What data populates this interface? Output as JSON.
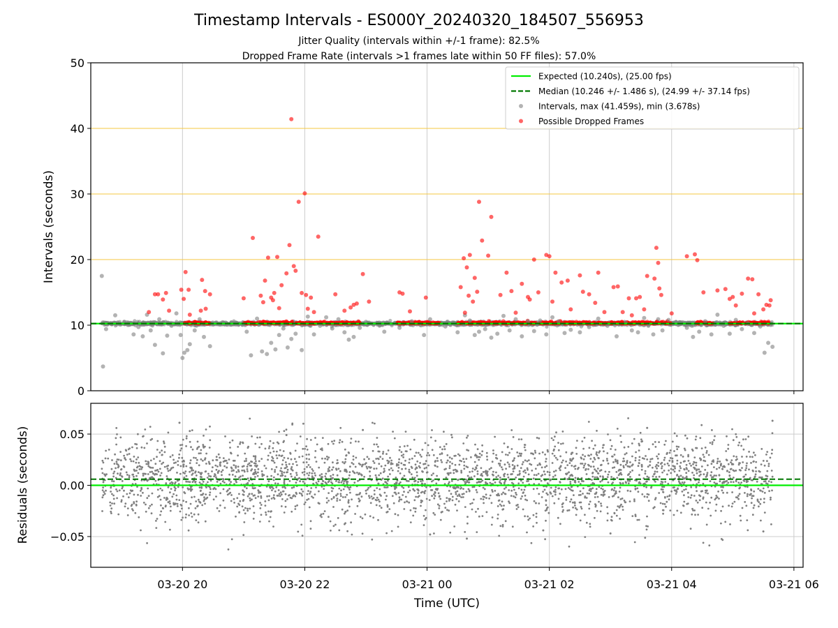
{
  "figure": {
    "title": "Timestamp Intervals - ES000Y_20240320_184507_556953",
    "subtitle_1": "Jitter Quality (intervals within +/-1 frame): 82.5%",
    "subtitle_2": "Dropped Frame Rate (intervals >1 frames late within 50 FF files): 57.0%"
  },
  "colors": {
    "expected": "#00ee00",
    "median": "#007700",
    "intervals": "#808080",
    "dropped": "#ff0000",
    "threshold": "#f5c842",
    "grid": "#cccccc"
  },
  "chart_data": [
    {
      "type": "scatter",
      "panel": "intervals",
      "xlabel": "",
      "ylabel": "Intervals (seconds)",
      "x_unit": "hours since 2024-03-20 00:00 UTC",
      "xlim": [
        18.5,
        30.15
      ],
      "ylim": [
        0,
        50
      ],
      "yticks": [
        0,
        10,
        20,
        30,
        40,
        50
      ],
      "ytick_labels": [
        "0",
        "10",
        "20",
        "30",
        "40",
        "50"
      ],
      "xticks": [
        20,
        22,
        24,
        26,
        28,
        30
      ],
      "threshold_lines": [
        20,
        30,
        40
      ],
      "expected_value": 10.24,
      "median_value": 10.246,
      "grid": true,
      "legend_position": "top-right",
      "legend": [
        {
          "label": "Expected (10.240s), (25.00 fps)",
          "style": "solid-line",
          "color": "#00ee00"
        },
        {
          "label": "Median (10.246 +/- 1.486 s), (24.99 +/- 37.14 fps)",
          "style": "dashed-line",
          "color": "#007700"
        },
        {
          "label": "Intervals, max (41.459s), min (3.678s)",
          "style": "dot",
          "color": "#808080"
        },
        {
          "label": "Possible Dropped Frames",
          "style": "dot",
          "color": "#ff0000"
        }
      ],
      "series": [
        {
          "name": "Intervals, max (41.459s), min (3.678s)",
          "x": [
            18.68,
            18.7,
            18.75,
            18.9,
            19.05,
            19.2,
            19.28,
            19.35,
            19.42,
            19.48,
            19.55,
            19.62,
            19.68,
            19.75,
            19.82,
            19.9,
            19.97,
            20.0,
            20.03,
            20.08,
            20.12,
            20.2,
            20.28,
            20.35,
            20.45,
            21.05,
            21.12,
            21.22,
            21.3,
            21.38,
            21.45,
            21.52,
            21.58,
            21.65,
            21.72,
            21.78,
            21.85,
            21.95,
            22.05,
            22.15,
            22.25,
            22.35,
            22.45,
            22.55,
            22.65,
            22.72,
            22.8,
            22.9,
            23.0,
            23.3,
            23.55,
            23.75,
            23.95,
            24.05,
            24.3,
            24.5,
            24.62,
            24.7,
            24.78,
            24.85,
            24.95,
            25.05,
            25.15,
            25.25,
            25.35,
            25.45,
            25.55,
            25.65,
            25.75,
            25.85,
            25.95,
            26.05,
            26.15,
            26.25,
            26.35,
            26.5,
            26.65,
            26.8,
            26.95,
            27.1,
            27.25,
            27.35,
            27.45,
            27.55,
            27.62,
            27.7,
            27.78,
            27.85,
            27.95,
            28.15,
            28.25,
            28.35,
            28.45,
            28.55,
            28.65,
            28.75,
            28.85,
            28.95,
            29.05,
            29.15,
            29.25,
            29.35,
            29.45,
            29.52,
            29.58,
            29.65
          ],
          "y": [
            17.5,
            3.7,
            9.4,
            11.5,
            10.5,
            8.6,
            9.7,
            8.3,
            11.6,
            9.2,
            7.0,
            10.9,
            5.7,
            8.4,
            9.9,
            11.8,
            8.5,
            5.0,
            5.8,
            6.2,
            7.1,
            9.2,
            10.9,
            8.2,
            6.8,
            9.0,
            5.4,
            11.0,
            6.0,
            5.6,
            7.3,
            6.3,
            8.5,
            9.5,
            6.6,
            7.9,
            8.7,
            6.2,
            11.3,
            8.6,
            9.9,
            11.2,
            9.5,
            10.9,
            8.9,
            7.8,
            8.2,
            9.6,
            10.5,
            9.0,
            9.6,
            10.6,
            8.5,
            10.9,
            9.8,
            8.9,
            11.5,
            10.7,
            8.5,
            9.0,
            9.4,
            8.1,
            8.7,
            11.4,
            9.2,
            10.9,
            8.3,
            10.6,
            9.1,
            10.7,
            8.6,
            11.2,
            10.6,
            8.8,
            9.3,
            8.9,
            9.7,
            11.0,
            9.9,
            8.3,
            10.4,
            9.2,
            8.9,
            11.1,
            9.9,
            8.6,
            10.9,
            9.2,
            10.8,
            10.4,
            9.6,
            8.2,
            9.0,
            10.6,
            8.6,
            11.6,
            9.9,
            8.7,
            10.8,
            9.4,
            10.3,
            8.8,
            9.8,
            5.8,
            7.3,
            6.7
          ]
        },
        {
          "name": "Possible Dropped Frames",
          "x": [
            19.45,
            19.55,
            19.6,
            19.68,
            19.73,
            19.78,
            19.98,
            20.02,
            20.05,
            20.1,
            20.12,
            20.3,
            20.32,
            20.37,
            20.38,
            20.45,
            21.0,
            21.15,
            21.28,
            21.32,
            21.35,
            21.4,
            21.45,
            21.48,
            21.5,
            21.55,
            21.58,
            21.62,
            21.7,
            21.75,
            21.78,
            21.82,
            21.85,
            21.9,
            21.95,
            22.0,
            22.02,
            22.05,
            22.1,
            22.15,
            22.22,
            22.5,
            22.65,
            22.75,
            22.8,
            22.85,
            22.95,
            23.05,
            23.55,
            23.6,
            23.72,
            23.98,
            24.55,
            24.6,
            24.62,
            24.65,
            24.68,
            24.7,
            24.75,
            24.78,
            24.82,
            24.85,
            24.9,
            25.0,
            25.05,
            25.2,
            25.3,
            25.38,
            25.45,
            25.55,
            25.65,
            25.68,
            25.75,
            25.82,
            25.95,
            26.0,
            26.05,
            26.1,
            26.2,
            26.3,
            26.35,
            26.5,
            26.55,
            26.65,
            26.75,
            26.8,
            26.9,
            27.05,
            27.12,
            27.2,
            27.3,
            27.35,
            27.42,
            27.48,
            27.55,
            27.6,
            27.72,
            27.75,
            27.78,
            27.8,
            27.83,
            28.0,
            28.25,
            28.38,
            28.42,
            28.52,
            28.75,
            28.88,
            28.95,
            29.0,
            29.05,
            29.15,
            29.25,
            29.32,
            29.35,
            29.42,
            29.5,
            29.55,
            29.6,
            29.62
          ],
          "y": [
            12.0,
            14.7,
            14.7,
            13.9,
            14.9,
            12.2,
            15.4,
            14.0,
            18.1,
            15.4,
            11.6,
            12.2,
            16.9,
            15.2,
            12.5,
            14.7,
            14.1,
            23.3,
            14.5,
            13.5,
            16.8,
            20.3,
            14.2,
            13.8,
            14.9,
            20.4,
            12.6,
            16.1,
            17.9,
            22.2,
            41.4,
            19.0,
            18.3,
            28.8,
            14.9,
            30.1,
            14.6,
            12.5,
            14.2,
            12.0,
            23.5,
            14.7,
            12.2,
            12.7,
            13.1,
            13.3,
            17.8,
            13.6,
            15.0,
            14.8,
            12.1,
            14.2,
            15.8,
            20.2,
            11.9,
            18.8,
            14.5,
            20.7,
            13.6,
            17.2,
            15.1,
            28.8,
            22.9,
            20.6,
            26.5,
            14.6,
            18.0,
            15.2,
            11.9,
            16.3,
            14.3,
            13.9,
            20.0,
            15.0,
            20.7,
            20.5,
            13.6,
            18.0,
            16.5,
            16.8,
            12.4,
            17.6,
            15.1,
            14.7,
            13.4,
            18.0,
            12.0,
            15.8,
            15.9,
            12.0,
            14.1,
            11.5,
            14.1,
            14.3,
            12.4,
            17.5,
            17.1,
            21.8,
            19.5,
            15.6,
            14.6,
            11.8,
            20.5,
            20.8,
            19.9,
            15.0,
            15.3,
            15.5,
            14.0,
            14.3,
            13.0,
            14.8,
            17.1,
            17.0,
            11.8,
            14.7,
            12.4,
            13.1,
            13.0,
            13.8
          ]
        }
      ]
    },
    {
      "type": "scatter",
      "panel": "residuals",
      "xlabel": "Time (UTC)",
      "ylabel": "Residuals (seconds)",
      "x_unit": "hours since 2024-03-20 00:00 UTC",
      "xlim": [
        18.5,
        30.15
      ],
      "ylim": [
        -0.08,
        0.08
      ],
      "yticks": [
        -0.05,
        0.0,
        0.05
      ],
      "ytick_labels": [
        "−0.05",
        "0.00",
        "0.05"
      ],
      "xticks": [
        20,
        22,
        24,
        26,
        28,
        30
      ],
      "xtick_labels": [
        "03-20 20",
        "03-20 22",
        "03-21 00",
        "03-21 02",
        "03-21 04",
        "03-21 06"
      ],
      "expected_residual": 0.0,
      "median_residual": 0.006,
      "grid": true,
      "noise_sigma": 0.02,
      "x_range": [
        18.68,
        29.65
      ],
      "point_count": 3000,
      "series": [
        {
          "name": "Residuals",
          "x": [
            19.95,
            20.12,
            21.7,
            22.95,
            24.05,
            24.65,
            25.9,
            27.0,
            27.6,
            29.5,
            29.65
          ],
          "y": [
            0.061,
            0.053,
            0.049,
            0.054,
            -0.048,
            -0.052,
            -0.044,
            -0.047,
            0.056,
            -0.045,
            0.063
          ]
        }
      ]
    }
  ]
}
